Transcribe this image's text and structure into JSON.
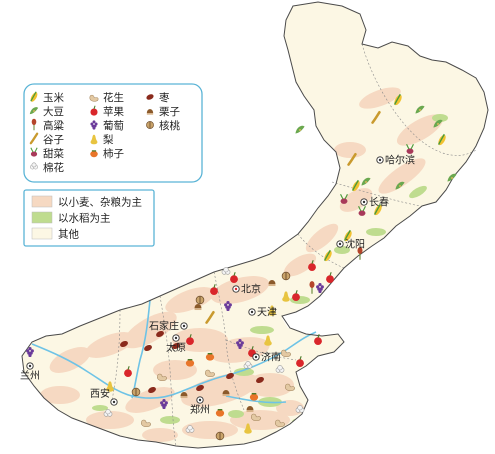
{
  "colors": {
    "wheat_area": "#f6d9c2",
    "rice_area": "#bfdc8f",
    "other_area": "#fcf7e4",
    "border": "#4a4a4a",
    "river": "#6ec3e6",
    "sea": "#ffffff",
    "legend_frame": "#5ab4d6"
  },
  "legend_crops": [
    {
      "label": "玉米",
      "icon": "corn-icon"
    },
    {
      "label": "大豆",
      "icon": "soybean-icon"
    },
    {
      "label": "高粱",
      "icon": "sorghum-icon"
    },
    {
      "label": "谷子",
      "icon": "millet-icon"
    },
    {
      "label": "甜菜",
      "icon": "sugar-beet-icon"
    },
    {
      "label": "棉花",
      "icon": "cotton-icon"
    },
    {
      "label": "花生",
      "icon": "peanut-icon"
    },
    {
      "label": "苹果",
      "icon": "apple-icon"
    },
    {
      "label": "葡萄",
      "icon": "grape-icon"
    },
    {
      "label": "梨",
      "icon": "pear-icon"
    },
    {
      "label": "柿子",
      "icon": "persimmon-icon"
    },
    {
      "label": "枣",
      "icon": "jujube-icon"
    },
    {
      "label": "栗子",
      "icon": "chestnut-icon"
    },
    {
      "label": "核桃",
      "icon": "walnut-icon"
    }
  ],
  "legend_areas": [
    {
      "label": "以小麦、杂粮为主",
      "swatch": "wheat"
    },
    {
      "label": "以水稻为主",
      "swatch": "rice"
    },
    {
      "label": "其他",
      "swatch": "other"
    }
  ],
  "cities": [
    {
      "name": "哈尔滨",
      "capital": true
    },
    {
      "name": "长春",
      "capital": true
    },
    {
      "name": "沈阳",
      "capital": true
    },
    {
      "name": "北京",
      "capital": true,
      "national": true
    },
    {
      "name": "天津",
      "capital": true
    },
    {
      "name": "石家庄",
      "capital": true
    },
    {
      "name": "太原",
      "capital": true
    },
    {
      "name": "济南",
      "capital": true
    },
    {
      "name": "郑州",
      "capital": true
    },
    {
      "name": "西安",
      "capital": true
    },
    {
      "name": "兰州",
      "capital": true
    }
  ]
}
